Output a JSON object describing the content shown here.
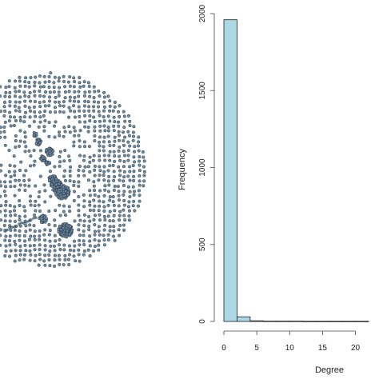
{
  "chart_data": [
    {
      "type": "network",
      "node_color": "#6e8ba3",
      "node_stroke": "#2b3a47"
    },
    {
      "type": "bar",
      "xlabel": "Degree",
      "ylabel": "Frequency",
      "bar_color": "#add8e6",
      "bin_edges": [
        0,
        2,
        4,
        6,
        8,
        10,
        12,
        14,
        16,
        18,
        20,
        22
      ],
      "values": [
        1960,
        30,
        4,
        2,
        2,
        2,
        1,
        1,
        1,
        1,
        1
      ],
      "xlim": [
        0,
        22
      ],
      "ylim": [
        0,
        2000
      ],
      "xticks": [
        "0",
        "5",
        "10",
        "15",
        "20"
      ],
      "yticks": [
        "0",
        "500",
        "1000",
        "1500",
        "2000"
      ],
      "grid": false
    }
  ]
}
